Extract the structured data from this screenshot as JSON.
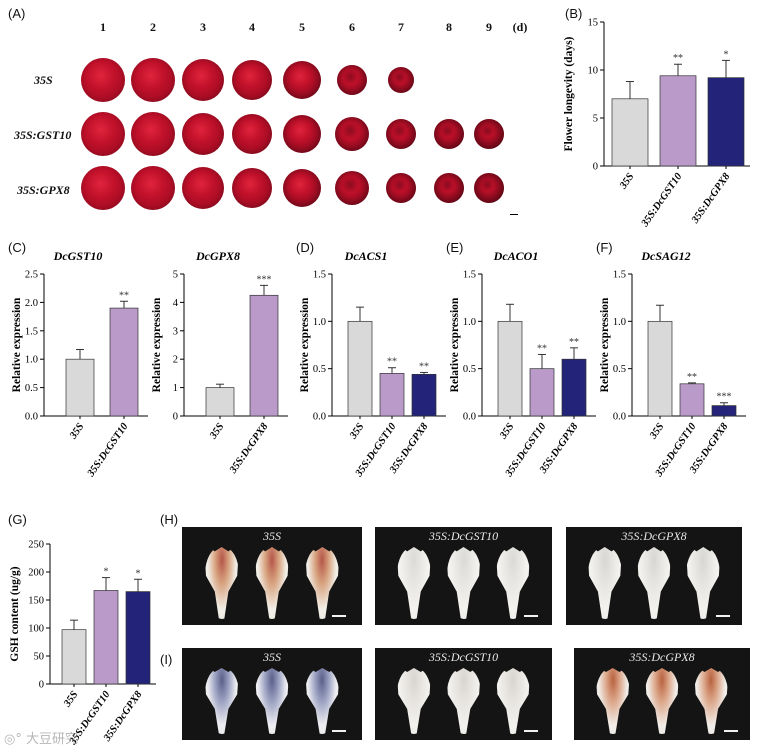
{
  "panel_labels": {
    "A": "(A)",
    "B": "(B)",
    "C": "(C)",
    "D": "(D)",
    "E": "(E)",
    "F": "(F)",
    "G": "(G)",
    "H": "(H)",
    "I": "(I)"
  },
  "panel_a": {
    "days": [
      "1",
      "2",
      "3",
      "4",
      "5",
      "6",
      "7",
      "8",
      "9"
    ],
    "day_unit": "(d)",
    "rows": [
      {
        "label": "35S",
        "flowers": 7
      },
      {
        "label": "35S:GST10",
        "flowers": 9
      },
      {
        "label": "35S:GPX8",
        "flowers": 9
      }
    ]
  },
  "colors": {
    "gray": "#d9d9d9",
    "purple": "#b99ac8",
    "navy": "#23237a",
    "flower_red": "#c0102a",
    "flower_dark": "#6a0818"
  },
  "chart_data": [
    {
      "id": "B",
      "type": "bar",
      "title": "",
      "ylabel": "Flower longevity (days)",
      "ylim": [
        0,
        15
      ],
      "yticks": [
        "0",
        "5",
        "10",
        "15"
      ],
      "categories": [
        "35S",
        "35S:DcGST10",
        "35S:DcGPX8"
      ],
      "values": [
        7.0,
        9.4,
        9.2
      ],
      "errors": [
        1.8,
        1.2,
        1.8
      ],
      "sig": [
        "",
        "**",
        "*"
      ]
    },
    {
      "id": "C1",
      "type": "bar",
      "title": "DcGST10",
      "ylabel": "Relative expression",
      "ylim": [
        0,
        2.5
      ],
      "yticks": [
        "0.0",
        "0.5",
        "1.0",
        "1.5",
        "2.0",
        "2.5"
      ],
      "categories": [
        "35S",
        "35S:DcGST10"
      ],
      "values": [
        1.0,
        1.9
      ],
      "errors": [
        0.17,
        0.12
      ],
      "sig": [
        "",
        "**"
      ]
    },
    {
      "id": "C2",
      "type": "bar",
      "title": "DcGPX8",
      "ylabel": "Relative expression",
      "ylim": [
        0,
        5
      ],
      "yticks": [
        "0",
        "1",
        "2",
        "3",
        "4",
        "5"
      ],
      "categories": [
        "35S",
        "35S:DcGPX8"
      ],
      "values": [
        1.0,
        4.25
      ],
      "errors": [
        0.12,
        0.35
      ],
      "sig": [
        "",
        "***"
      ]
    },
    {
      "id": "D",
      "type": "bar",
      "title": "DcACS1",
      "ylabel": "Relative expression",
      "ylim": [
        0,
        1.5
      ],
      "yticks": [
        "0.0",
        "0.5",
        "1.0",
        "1.5"
      ],
      "categories": [
        "35S",
        "35S:DcGST10",
        "35S:DcGPX8"
      ],
      "values": [
        1.0,
        0.45,
        0.44
      ],
      "errors": [
        0.15,
        0.06,
        0.02
      ],
      "sig": [
        "",
        "**",
        "**"
      ]
    },
    {
      "id": "E",
      "type": "bar",
      "title": "DcACO1",
      "ylabel": "Relative expression",
      "ylim": [
        0,
        1.5
      ],
      "yticks": [
        "0.0",
        "0.5",
        "1.0",
        "1.5"
      ],
      "categories": [
        "35S",
        "35S:DcGST10",
        "35S:DcGPX8"
      ],
      "values": [
        1.0,
        0.5,
        0.6
      ],
      "errors": [
        0.18,
        0.15,
        0.12
      ],
      "sig": [
        "",
        "**",
        "**"
      ]
    },
    {
      "id": "F",
      "type": "bar",
      "title": "DcSAG12",
      "ylabel": "Relative expression",
      "ylim": [
        0,
        1.5
      ],
      "yticks": [
        "0.0",
        "0.5",
        "1.0",
        "1.5"
      ],
      "categories": [
        "35S",
        "35S:DcGST10",
        "35S:DcGPX8"
      ],
      "values": [
        1.0,
        0.34,
        0.11
      ],
      "errors": [
        0.17,
        0.01,
        0.03
      ],
      "sig": [
        "",
        "**",
        "***"
      ]
    },
    {
      "id": "G",
      "type": "bar",
      "title": "",
      "ylabel": "GSH content (ug/g)",
      "ylim": [
        0,
        250
      ],
      "yticks": [
        "0",
        "50",
        "100",
        "150",
        "200",
        "250"
      ],
      "categories": [
        "35S",
        "35S:DcGST10",
        "35S:DcGPX8"
      ],
      "values": [
        97,
        167,
        165
      ],
      "errors": [
        17,
        23,
        22
      ],
      "sig": [
        "",
        "*",
        "*"
      ]
    }
  ],
  "photos_h": [
    "35S",
    "35S:DcGST10",
    "35S:DcGPX8"
  ],
  "photos_i": [
    "35S",
    "35S:DcGST10",
    "35S:DcGPX8"
  ],
  "watermark": "大豆研究"
}
